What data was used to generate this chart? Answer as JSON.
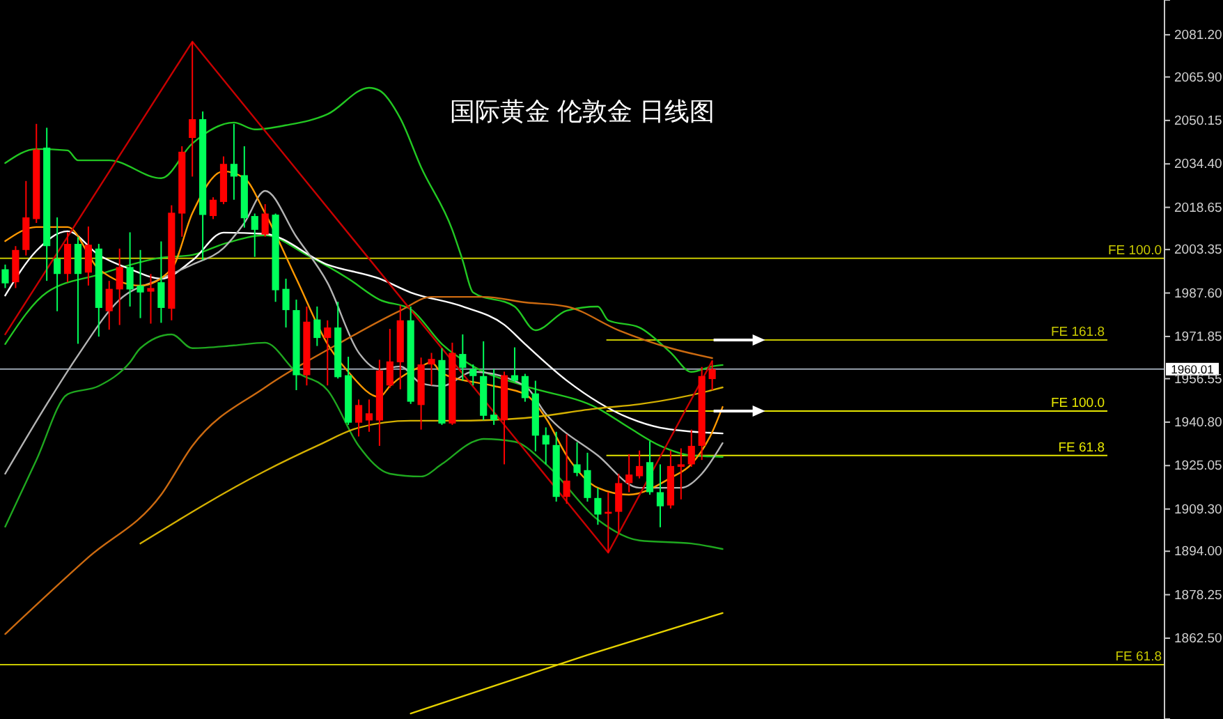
{
  "chart_data": {
    "type": "candlestick",
    "title": "国际黄金 伦敦金 日线图",
    "tick_labels": "y",
    "grid": false,
    "ylim": [
      1833.2,
      2093.8
    ],
    "yticks": [
      {
        "value": 2081.2,
        "label": "2081.20"
      },
      {
        "value": 2065.9,
        "label": "2065.90"
      },
      {
        "value": 2050.15,
        "label": "2050.15"
      },
      {
        "value": 2034.4,
        "label": "2034.40"
      },
      {
        "value": 2018.65,
        "label": "2018.65"
      },
      {
        "value": 2003.35,
        "label": "2003.35"
      },
      {
        "value": 1987.6,
        "label": "1987.60"
      },
      {
        "value": 1971.85,
        "label": "1971.85"
      },
      {
        "value": 1956.55,
        "label": "1956.55"
      },
      {
        "value": 1940.8,
        "label": "1940.80"
      },
      {
        "value": 1925.05,
        "label": "1925.05"
      },
      {
        "value": 1909.3,
        "label": "1909.30"
      },
      {
        "value": 1894,
        "label": "1894.00"
      },
      {
        "value": 1878.25,
        "label": "1878.25"
      },
      {
        "value": 1862.5,
        "label": "1862.50"
      }
    ],
    "categories": [
      null,
      null,
      null,
      null,
      null,
      null,
      null,
      null,
      null,
      null,
      null,
      null,
      null,
      null,
      null,
      null,
      null,
      null,
      null,
      null,
      null,
      null,
      null,
      null,
      null,
      null,
      null,
      null,
      null,
      null,
      null,
      null,
      null,
      null,
      null,
      null,
      null,
      null,
      null,
      null,
      null,
      null,
      null,
      null,
      null,
      null,
      null,
      null,
      null,
      null,
      null,
      null,
      null,
      null,
      null,
      null,
      null,
      null,
      null,
      null,
      null,
      null,
      null,
      null,
      null,
      null,
      null,
      null,
      null,
      null,
      null,
      null,
      null,
      null,
      null,
      null,
      null,
      null,
      null,
      null,
      null,
      null,
      null,
      null,
      null,
      null,
      null,
      null,
      null,
      null,
      null,
      null,
      null,
      null,
      null,
      null,
      null,
      null,
      null,
      null,
      null,
      null,
      null,
      null,
      null,
      null,
      null,
      null,
      null,
      null,
      null,
      null
    ],
    "ohlc": [
      [
        1996.2,
        1997.9,
        1989.4,
        1991.1
      ],
      [
        1991.5,
        2004.6,
        1989.4,
        2003.2
      ],
      [
        2003.2,
        2028.2,
        2001.2,
        2015.0
      ],
      [
        2014.4,
        2048.9,
        2013.0,
        2039.6
      ],
      [
        2040.3,
        2047.5,
        1992.0,
        2004.6
      ],
      [
        2000.0,
        2015.0,
        1981.0,
        1994.5
      ],
      [
        1994.5,
        2009.6,
        1991.5,
        2005.4
      ],
      [
        2005.4,
        2007.9,
        1969.2,
        1994.5
      ],
      [
        1995.0,
        2011.7,
        1990.3,
        2005.1
      ],
      [
        2003.7,
        2005.4,
        1971.8,
        1982.2
      ],
      [
        1981.0,
        1992.0,
        1974.3,
        1989.1
      ],
      [
        1988.9,
        2003.7,
        1976.0,
        1997.0
      ],
      [
        1997.0,
        2009.6,
        1982.7,
        1988.9
      ],
      [
        1990.3,
        2003.2,
        1978.5,
        1987.8
      ],
      [
        1988.1,
        1994.5,
        1976.5,
        1989.4
      ],
      [
        1991.5,
        2006.3,
        1976.8,
        1982.2
      ],
      [
        1981.9,
        2019.4,
        1977.7,
        2016.7
      ],
      [
        2016.4,
        2040.8,
        2008.0,
        2038.8
      ],
      [
        2043.8,
        2078.7,
        2029.8,
        2050.6
      ],
      [
        2050.6,
        2053.4,
        1999.5,
        2015.9
      ],
      [
        2015.5,
        2022.3,
        2014.4,
        2021.4
      ],
      [
        2020.6,
        2037.1,
        2019.8,
        2034.4
      ],
      [
        2034.4,
        2048.9,
        2021.4,
        2029.8
      ],
      [
        2030.3,
        2040.8,
        2011.3,
        2014.7
      ],
      [
        2015.5,
        2016.4,
        2000.7,
        2010.5
      ],
      [
        2008.8,
        2019.8,
        2008.0,
        2016.4
      ],
      [
        2016.0,
        2016.4,
        1984.4,
        1988.6
      ],
      [
        1989.1,
        1992.8,
        1975.1,
        1981.4
      ],
      [
        1981.4,
        1985.2,
        1952.4,
        1957.8
      ],
      [
        1957.8,
        1982.7,
        1954.1,
        1977.2
      ],
      [
        1978.0,
        1982.7,
        1968.4,
        1971.3
      ],
      [
        1971.3,
        1977.7,
        1954.1,
        1975.1
      ],
      [
        1975.1,
        1984.4,
        1956.6,
        1957.1
      ],
      [
        1957.8,
        1964.5,
        1939.8,
        1940.6
      ],
      [
        1940.6,
        1949.0,
        1935.6,
        1947.0
      ],
      [
        1941.4,
        1949.0,
        1937.3,
        1944.0
      ],
      [
        1941.4,
        1963.4,
        1932.2,
        1959.5
      ],
      [
        1954.1,
        1974.6,
        1953.2,
        1962.8
      ],
      [
        1962.5,
        1983.1,
        1952.7,
        1977.7
      ],
      [
        1977.7,
        1982.7,
        1947.4,
        1948.2
      ],
      [
        1947.0,
        1964.2,
        1938.1,
        1961.7
      ],
      [
        1961.7,
        1965.9,
        1954.1,
        1963.7
      ],
      [
        1963.3,
        1967.6,
        1939.8,
        1940.3
      ],
      [
        1940.3,
        1969.6,
        1939.8,
        1965.9
      ],
      [
        1965.5,
        1972.6,
        1955.8,
        1960.5
      ],
      [
        1960.0,
        1961.7,
        1954.1,
        1957.5
      ],
      [
        1957.5,
        1970.1,
        1941.5,
        1943.1
      ],
      [
        1943.5,
        1960.0,
        1939.8,
        1941.5
      ],
      [
        1941.5,
        1959.1,
        1925.5,
        1957.8
      ],
      [
        1957.8,
        1967.9,
        1955.4,
        1955.8
      ],
      [
        1957.5,
        1958.3,
        1948.2,
        1949.5
      ],
      [
        1951.2,
        1955.8,
        1930.2,
        1935.9
      ],
      [
        1936.1,
        1938.9,
        1925.5,
        1932.7
      ],
      [
        1932.5,
        1937.3,
        1912.0,
        1913.7
      ],
      [
        1913.7,
        1936.4,
        1911.2,
        1919.6
      ],
      [
        1925.5,
        1933.5,
        1921.2,
        1922.4
      ],
      [
        1923.4,
        1929.7,
        1912.0,
        1913.3
      ],
      [
        1913.3,
        1917.0,
        1903.6,
        1907.3
      ],
      [
        1907.6,
        1915.4,
        1893.5,
        1908.3
      ],
      [
        1908.3,
        1922.1,
        1900.2,
        1918.7
      ],
      [
        1918.7,
        1929.2,
        1915.4,
        1921.8
      ],
      [
        1921.2,
        1930.5,
        1920.4,
        1924.9
      ],
      [
        1926.3,
        1933.9,
        1914.5,
        1915.4
      ],
      [
        1915.4,
        1925.5,
        1902.7,
        1910.3
      ],
      [
        1910.6,
        1930.5,
        1909.5,
        1924.9
      ],
      [
        1924.6,
        1931.3,
        1912.8,
        1925.5
      ],
      [
        1925.5,
        1938.1,
        1924.6,
        1932.2
      ],
      [
        1932.2,
        1960.8,
        1927.1,
        1957.5
      ],
      [
        1956.4,
        1963.0,
        1952.4,
        1960.0
      ],
      null,
      null,
      null,
      null,
      null,
      null,
      null,
      null,
      null,
      null,
      null,
      null,
      null,
      null,
      null,
      null,
      null,
      null,
      null,
      null,
      null,
      null,
      null,
      null,
      null,
      null,
      null,
      null,
      null,
      null,
      null,
      null,
      null,
      null,
      null,
      null,
      null,
      null,
      null,
      null,
      null,
      null,
      null
    ],
    "colors": [
      "#00ff5a",
      "#ff0000",
      "#ff0000",
      "#ff0000",
      "#00ff5a",
      "#00ff5a",
      "#ff0000",
      "#00ff5a",
      "#ff0000",
      "#00ff5a",
      "#ff0000",
      "#ff0000",
      "#00ff5a",
      "#00ff5a",
      "#ff0000",
      "#00ff5a",
      "#ff0000",
      "#ff0000",
      "#ff0000",
      "#00ff5a",
      "#ff0000",
      "#ff0000",
      "#00ff5a",
      "#00ff5a",
      "#00ff5a",
      "#ff0000",
      "#00ff5a",
      "#00ff5a",
      "#00ff5a",
      "#ff0000",
      "#00ff5a",
      "#ff0000",
      "#00ff5a",
      "#00ff5a",
      "#ff0000",
      "#ff0000",
      "#ff0000",
      "#ff0000",
      "#ff0000",
      "#00ff5a",
      "#ff0000",
      "#ff0000",
      "#00ff5a",
      "#ff0000",
      "#00ff5a",
      "#00ff5a",
      "#00ff5a",
      "#00ff5a",
      "#ff0000",
      "#00ff5a",
      "#00ff5a",
      "#00ff5a",
      "#00ff5a",
      "#00ff5a",
      "#ff0000",
      "#00ff5a",
      "#00ff5a",
      "#00ff5a",
      "#ff0000",
      "#ff0000",
      "#ff0000",
      "#ff0000",
      "#00ff5a",
      "#00ff5a",
      "#ff0000",
      "#ff0000",
      "#ff0000",
      "#ff0000",
      "#ff0000",
      null,
      null,
      null,
      null,
      null,
      null,
      null,
      null,
      null,
      null,
      null,
      null,
      null,
      null,
      null,
      null,
      null,
      null,
      null,
      null,
      null,
      null,
      null,
      null,
      null,
      null,
      null,
      null,
      null,
      null,
      null,
      null,
      null,
      null,
      null,
      null,
      null,
      null,
      null,
      null,
      null,
      null,
      null
    ],
    "ref_lines": [
      {
        "axis": "y",
        "value": 1960.01,
        "label": "1960.01",
        "color": "#9aa4b0"
      },
      {
        "axis": "y",
        "value": 1970.6,
        "label": "FE 161.8",
        "color": "#c8c800"
      },
      {
        "axis": "y",
        "value": 1944.8,
        "label": "FE 100.0",
        "color": "#e6e600"
      },
      {
        "axis": "y",
        "value": 1928.7,
        "label": "FE 61.8",
        "color": "#e6e600"
      },
      {
        "axis": "y",
        "value": 2000.2,
        "label": "FE 100.0",
        "color": "#c8c800"
      },
      {
        "axis": "y",
        "value": 1852.9,
        "label": "FE 61.8",
        "color": "#c8c800"
      }
    ],
    "series": [
      {
        "type": "line",
        "color": "#22c822",
        "values": [
          2034.7,
          null,
          null,
          2039.8,
          null,
          null,
          2039.3,
          2035.7,
          null,
          null,
          2035.7,
          null,
          null,
          null,
          null,
          2029.2,
          null,
          null,
          2041.8,
          null,
          null,
          null,
          2049.4,
          null,
          2046.9,
          null,
          null,
          2048.4,
          null,
          null,
          null,
          2052.4,
          null,
          null,
          null,
          2062.0,
          2061.0,
          null,
          2050.9,
          null,
          2033.2,
          null,
          null,
          2010.5,
          1999.4,
          1987.8,
          null,
          null,
          null,
          1982.7,
          null,
          1974.1,
          null,
          null,
          1981.2,
          null,
          null,
          1982.7,
          1977.7,
          null,
          null,
          1975.1,
          null,
          null,
          1966.0,
          null,
          1959.0,
          null,
          1961.0,
          1961.5,
          null,
          null,
          null,
          null,
          null,
          null,
          null,
          null,
          null,
          null,
          null,
          null,
          null,
          null,
          null,
          null,
          null,
          null,
          null,
          null,
          null,
          null,
          null,
          null,
          null,
          null,
          null,
          null,
          null,
          null,
          null,
          null,
          null,
          null,
          null,
          null,
          null,
          null,
          null,
          null,
          null,
          null
        ]
      },
      {
        "type": "line",
        "color": "#22c822",
        "values": [
          1969.1,
          null,
          null,
          null,
          1987.8,
          null,
          null,
          null,
          null,
          1994.3,
          null,
          null,
          null,
          null,
          null,
          2000.4,
          null,
          null,
          2001.4,
          null,
          null,
          2005.4,
          null,
          null,
          null,
          2008.5,
          null,
          null,
          null,
          2001.4,
          null,
          null,
          null,
          1992.8,
          null,
          null,
          1985.2,
          null,
          null,
          1981.7,
          null,
          null,
          1969.1,
          null,
          null,
          1961.0,
          null,
          null,
          null,
          null,
          1953.9,
          null,
          null,
          null,
          null,
          null,
          null,
          1945.8,
          null,
          null,
          1938.8,
          null,
          null,
          1932.2,
          null,
          null,
          1928.7,
          null,
          null,
          1928.2,
          null,
          null,
          null,
          null,
          null,
          null,
          null,
          null,
          null,
          null,
          null,
          null,
          null,
          null,
          null,
          null,
          null,
          null,
          null,
          null,
          null,
          null,
          null,
          null,
          null,
          null,
          null,
          null,
          null,
          null,
          null,
          null,
          null,
          null,
          null,
          null,
          null,
          null,
          null,
          null,
          null,
          null
        ]
      },
      {
        "type": "line",
        "color": "#1fa81f",
        "values": [
          1902.9,
          null,
          null,
          1927.1,
          null,
          null,
          1950.9,
          null,
          null,
          1953.9,
          null,
          null,
          1962.5,
          1967.6,
          null,
          null,
          1972.6,
          null,
          1967.6,
          null,
          null,
          null,
          1968.6,
          null,
          null,
          1969.6,
          null,
          null,
          1959.0,
          null,
          null,
          1952.4,
          null,
          null,
          1932.2,
          null,
          null,
          1922.1,
          null,
          null,
          1921.1,
          null,
          1925.6,
          null,
          null,
          1933.7,
          1934.7,
          null,
          null,
          1933.7,
          null,
          null,
          1925.6,
          null,
          null,
          null,
          null,
          1905.4,
          null,
          null,
          null,
          1897.9,
          null,
          null,
          null,
          null,
          1896.8,
          null,
          null,
          1894.8,
          null,
          null,
          null,
          null,
          null,
          null,
          null,
          null,
          null,
          null,
          null,
          null,
          null,
          null,
          null,
          null,
          null,
          null,
          null,
          null,
          null,
          null,
          null,
          null,
          null,
          null,
          null,
          null,
          null,
          null,
          null,
          null,
          null,
          null,
          null,
          null,
          null,
          null,
          null,
          null,
          null,
          null
        ]
      },
      {
        "type": "line",
        "color": "#ffffff",
        "values": [
          1986.7,
          null,
          null,
          2002.9,
          null,
          null,
          2010.0,
          null,
          null,
          2001.4,
          null,
          null,
          1996.3,
          null,
          null,
          1992.8,
          null,
          null,
          1999.4,
          null,
          null,
          2009.5,
          null,
          null,
          null,
          2009.0,
          null,
          null,
          null,
          null,
          null,
          1997.9,
          null,
          null,
          null,
          null,
          1992.8,
          null,
          null,
          1987.8,
          null,
          null,
          null,
          null,
          1982.7,
          null,
          null,
          null,
          1976.1,
          null,
          1969.1,
          null,
          null,
          null,
          1955.9,
          null,
          null,
          null,
          null,
          null,
          1942.3,
          null,
          null,
          1938.8,
          null,
          null,
          null,
          null,
          null,
          1936.7,
          null,
          null,
          null,
          null,
          null,
          null,
          null,
          null,
          null,
          null,
          null,
          null,
          null,
          null,
          null,
          null,
          null,
          null,
          null,
          null,
          null,
          null,
          null,
          null,
          null,
          null,
          null,
          null,
          null,
          null,
          null,
          null,
          null,
          null,
          null,
          null,
          null,
          null,
          null,
          null,
          null,
          null
        ]
      },
      {
        "type": "line",
        "color": "#b4b4b4",
        "values": [
          1922.1,
          null,
          null,
          null,
          1947.3,
          null,
          null,
          1965.0,
          null,
          null,
          null,
          1985.2,
          null,
          null,
          null,
          1992.8,
          null,
          null,
          1997.9,
          null,
          null,
          2003.9,
          null,
          2013.0,
          null,
          2024.6,
          null,
          null,
          2008.0,
          null,
          null,
          1991.3,
          null,
          null,
          1966.0,
          null,
          1959.9,
          null,
          1961.0,
          null,
          1954.9,
          null,
          1953.9,
          null,
          null,
          1959.0,
          null,
          null,
          null,
          null,
          1953.9,
          null,
          1943.8,
          null,
          null,
          null,
          null,
          1928.7,
          null,
          null,
          null,
          1917.0,
          null,
          null,
          null,
          1917.0,
          null,
          1922.1,
          null,
          1933.2,
          null,
          null,
          null,
          null,
          null,
          null,
          null,
          null,
          null,
          null,
          null,
          null,
          null,
          null,
          null,
          null,
          null,
          null,
          null,
          null,
          null,
          null,
          null,
          null,
          null,
          null,
          null,
          null,
          null,
          null,
          null,
          null,
          null,
          null,
          null,
          null,
          null,
          null,
          null,
          null,
          null,
          null
        ]
      },
      {
        "type": "line",
        "color": "#ff9900",
        "values": [
          2006.4,
          null,
          null,
          2011.5,
          null,
          null,
          2011.5,
          null,
          null,
          1996.3,
          null,
          null,
          null,
          1990.3,
          null,
          null,
          1996.3,
          null,
          2016.5,
          null,
          null,
          2031.7,
          null,
          2029.2,
          null,
          2016.5,
          null,
          null,
          1992.8,
          null,
          null,
          1969.1,
          null,
          1959.0,
          null,
          null,
          1949.9,
          1953.9,
          null,
          null,
          1961.0,
          1962.5,
          1958.5,
          null,
          null,
          null,
          null,
          1953.9,
          null,
          null,
          1950.9,
          null,
          1942.3,
          null,
          1928.7,
          null,
          null,
          1917.0,
          null,
          null,
          1914.5,
          null,
          null,
          null,
          1920.6,
          null,
          1925.6,
          null,
          1937.2,
          1946.3,
          null,
          null,
          null,
          null,
          null,
          null,
          null,
          null,
          null,
          null,
          null,
          null,
          null,
          null,
          null,
          null,
          null,
          null,
          null,
          null,
          null,
          null,
          null,
          null,
          null,
          null,
          null,
          null,
          null,
          null,
          null,
          null,
          null,
          null,
          null,
          null,
          null,
          null,
          null,
          null,
          null,
          null
        ]
      },
      {
        "type": "line",
        "color": "#cc6a10",
        "values": [
          1864.0,
          null,
          null,
          null,
          null,
          null,
          null,
          null,
          1891.8,
          null,
          null,
          null,
          null,
          null,
          null,
          1914.5,
          null,
          null,
          1932.2,
          null,
          null,
          null,
          null,
          null,
          null,
          1953.4,
          null,
          null,
          null,
          null,
          null,
          null,
          1969.1,
          null,
          null,
          null,
          null,
          null,
          1981.2,
          null,
          null,
          1986.2,
          null,
          null,
          null,
          null,
          1986.2,
          null,
          null,
          null,
          1984.2,
          null,
          null,
          null,
          1982.7,
          null,
          null,
          null,
          null,
          1974.1,
          null,
          null,
          null,
          null,
          1967.6,
          null,
          null,
          null,
          1964.0,
          null,
          null,
          null,
          null,
          null,
          null,
          null,
          null,
          null,
          null,
          null,
          null,
          null,
          null,
          null,
          null,
          null,
          null,
          null,
          null,
          null,
          null,
          null,
          null,
          null,
          null,
          null,
          null,
          null,
          null,
          null,
          null,
          null,
          null,
          null,
          null,
          null,
          null,
          null,
          null,
          null,
          null,
          null
        ]
      },
      {
        "type": "line",
        "color": "#d4b000",
        "values": [
          null,
          null,
          null,
          null,
          null,
          null,
          null,
          null,
          null,
          null,
          null,
          null,
          null,
          1896.8,
          null,
          null,
          null,
          null,
          null,
          null,
          null,
          null,
          null,
          null,
          null,
          1923.1,
          null,
          null,
          null,
          null,
          1932.2,
          null,
          null,
          null,
          1938.8,
          null,
          null,
          null,
          null,
          1941.3,
          null,
          null,
          null,
          1941.3,
          null,
          null,
          null,
          null,
          null,
          null,
          1942.3,
          null,
          null,
          null,
          null,
          null,
          null,
          1945.8,
          null,
          null,
          null,
          1947.3,
          null,
          null,
          null,
          null,
          null,
          null,
          1952.4,
          1953.4,
          null,
          null,
          null,
          null,
          null,
          null,
          null,
          null,
          null,
          null,
          null,
          null,
          null,
          null,
          null,
          null,
          null,
          null,
          null,
          null,
          null,
          null,
          null,
          null,
          null,
          null,
          null,
          null,
          null,
          null,
          null,
          null,
          null,
          null,
          null,
          null,
          null,
          null,
          null,
          null,
          null,
          null
        ]
      },
      {
        "type": "line",
        "color": "#e6d200",
        "values": [
          null,
          null,
          null,
          null,
          null,
          null,
          null,
          null,
          null,
          null,
          null,
          null,
          null,
          null,
          null,
          null,
          null,
          null,
          null,
          null,
          null,
          null,
          null,
          null,
          null,
          null,
          null,
          null,
          null,
          null,
          null,
          null,
          null,
          null,
          null,
          null,
          null,
          null,
          null,
          1835.2,
          null,
          null,
          null,
          null,
          null,
          null,
          null,
          null,
          null,
          null,
          null,
          null,
          null,
          null,
          null,
          null,
          1856.4,
          null,
          null,
          null,
          null,
          null,
          null,
          null,
          null,
          null,
          null,
          null,
          null,
          1871.6,
          null,
          null,
          null,
          null,
          null,
          null,
          null,
          null,
          null,
          null,
          null,
          null,
          null,
          null,
          null,
          null,
          null,
          null,
          null,
          null,
          null,
          null,
          null,
          null,
          null,
          null,
          null,
          null,
          null,
          null,
          null,
          null,
          null,
          null,
          null,
          null,
          null,
          null,
          null,
          null,
          null,
          null
        ]
      },
      {
        "type": "line",
        "color": "#c80000",
        "values": [
          1972.6,
          null,
          null,
          null,
          null,
          null,
          null,
          null,
          null,
          null,
          null,
          null,
          null,
          null,
          null,
          null,
          null,
          null,
          2078.7,
          null,
          null,
          null,
          null,
          null,
          null,
          null,
          null,
          null,
          null,
          null,
          null,
          null,
          null,
          null,
          null,
          null,
          null,
          null,
          null,
          null,
          null,
          null,
          null,
          null,
          null,
          null,
          null,
          null,
          null,
          null,
          null,
          null,
          null,
          null,
          null,
          null,
          null,
          null,
          1893.5,
          null,
          null,
          null,
          null,
          null,
          null,
          null,
          null,
          null,
          1963.0,
          null,
          null,
          null,
          null,
          null,
          null,
          null,
          null,
          null,
          null,
          null,
          null,
          null,
          null,
          null,
          null,
          null,
          null,
          null,
          null,
          null,
          null,
          null,
          null,
          null,
          null,
          null,
          null,
          null,
          null,
          null,
          null,
          null,
          null,
          null,
          null,
          null,
          null,
          null,
          null,
          null,
          null,
          null
        ]
      }
    ]
  }
}
